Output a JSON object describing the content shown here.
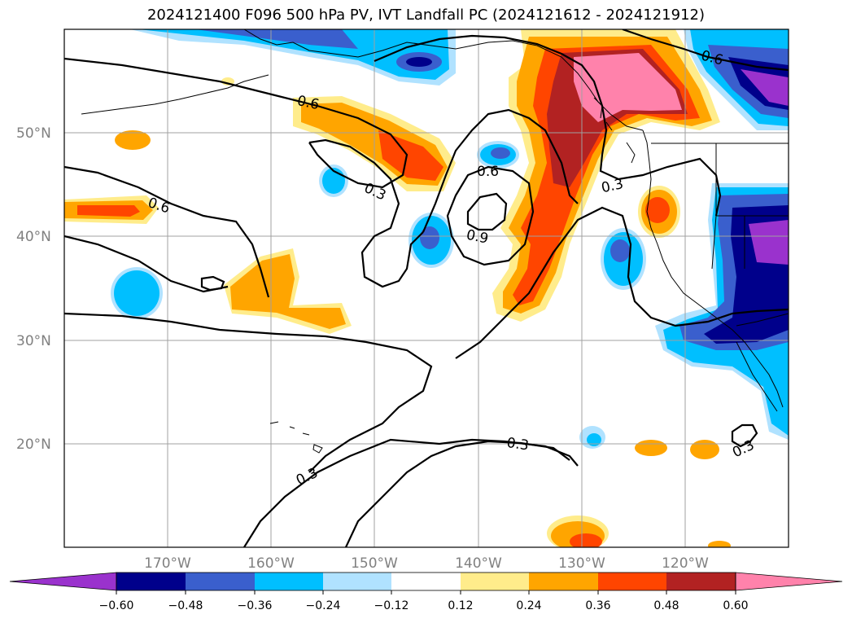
{
  "title": "2024121400 F096 500 hPa PV, IVT Landfall PC (2024121612 - 2024121912)",
  "map": {
    "lon_range": [
      -180,
      -110
    ],
    "lat_range": [
      10,
      60
    ],
    "lat_labels": [
      "20°N",
      "30°N",
      "40°N",
      "50°N"
    ],
    "lon_labels": [
      "170°W",
      "160°W",
      "150°W",
      "140°W",
      "130°W",
      "120°W"
    ],
    "grid": true,
    "contour_labels": [
      "0.6",
      "0.6",
      "0.3",
      "0.6",
      "0.9",
      "0.3",
      "0.6",
      "0.3",
      "0.3",
      "0.3"
    ]
  },
  "colorbar": {
    "ticks": [
      "−0.60",
      "−0.48",
      "−0.36",
      "−0.24",
      "−0.12",
      "0.12",
      "0.24",
      "0.36",
      "0.48",
      "0.60"
    ],
    "colors": [
      "#9a32cd",
      "#00008b",
      "#3a5fcd",
      "#00bfff",
      "#b0e2ff",
      "#ffffff",
      "#ffec8b",
      "#ffa500",
      "#ff4500",
      "#b22222",
      "#ff82ab"
    ],
    "extend": "both"
  }
}
